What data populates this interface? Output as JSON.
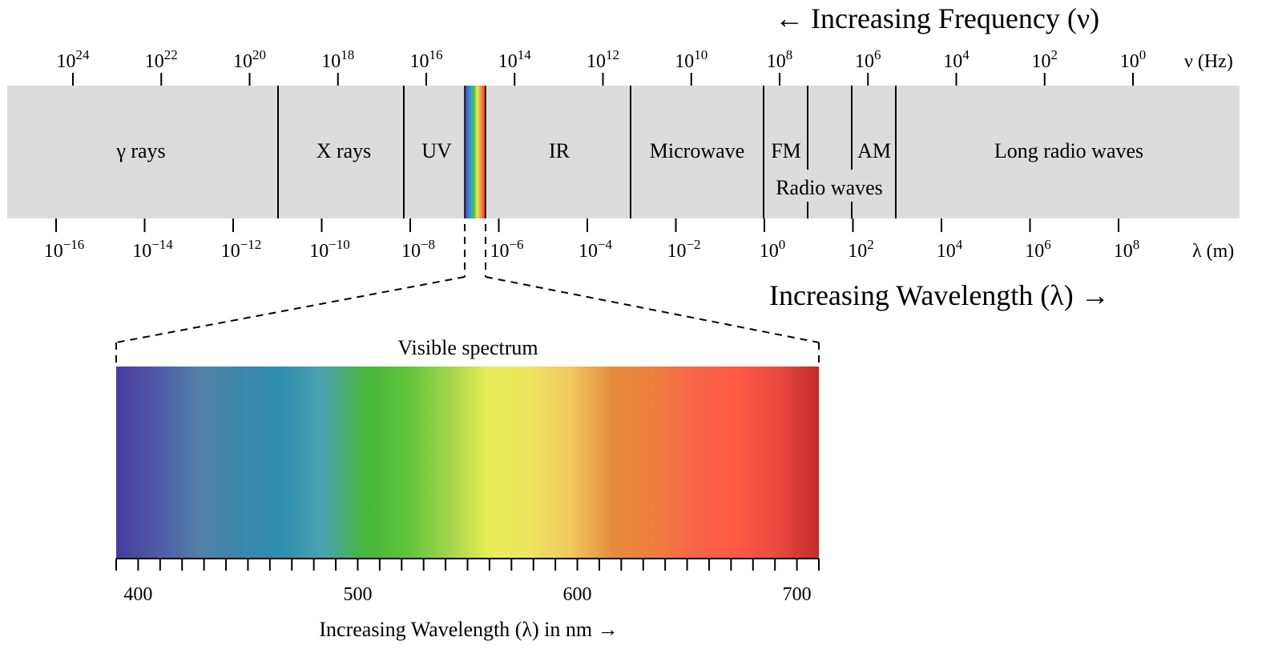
{
  "colors": {
    "band": "#dcdcdc",
    "line": "#000000",
    "background": "#ffffff"
  },
  "frequency_axis": {
    "title": "← Increasing Frequency (ν)",
    "unit_label": "ν (Hz)",
    "ticks": [
      {
        "base": "10",
        "exp": "24",
        "log_hz": 24
      },
      {
        "base": "10",
        "exp": "22",
        "log_hz": 22
      },
      {
        "base": "10",
        "exp": "20",
        "log_hz": 20
      },
      {
        "base": "10",
        "exp": "18",
        "log_hz": 18
      },
      {
        "base": "10",
        "exp": "16",
        "log_hz": 16
      },
      {
        "base": "10",
        "exp": "14",
        "log_hz": 14
      },
      {
        "base": "10",
        "exp": "12",
        "log_hz": 12
      },
      {
        "base": "10",
        "exp": "10",
        "log_hz": 10
      },
      {
        "base": "10",
        "exp": "8",
        "log_hz": 8
      },
      {
        "base": "10",
        "exp": "6",
        "log_hz": 6
      },
      {
        "base": "10",
        "exp": "4",
        "log_hz": 4
      },
      {
        "base": "10",
        "exp": "2",
        "log_hz": 2
      },
      {
        "base": "10",
        "exp": "0",
        "log_hz": 0
      }
    ]
  },
  "wavelength_axis": {
    "title": "Increasing Wavelength (λ) →",
    "unit_label": "λ (m)",
    "ticks": [
      {
        "base": "10",
        "exp": "−16",
        "log_m": -16
      },
      {
        "base": "10",
        "exp": "−14",
        "log_m": -14
      },
      {
        "base": "10",
        "exp": "−12",
        "log_m": -12
      },
      {
        "base": "10",
        "exp": "−10",
        "log_m": -10
      },
      {
        "base": "10",
        "exp": "−8",
        "log_m": -8
      },
      {
        "base": "10",
        "exp": "−6",
        "log_m": -6
      },
      {
        "base": "10",
        "exp": "−4",
        "log_m": -4
      },
      {
        "base": "10",
        "exp": "−2",
        "log_m": -2
      },
      {
        "base": "10",
        "exp": "0",
        "log_m": 0
      },
      {
        "base": "10",
        "exp": "2",
        "log_m": 2
      },
      {
        "base": "10",
        "exp": "4",
        "log_m": 4
      },
      {
        "base": "10",
        "exp": "6",
        "log_m": 6
      },
      {
        "base": "10",
        "exp": "8",
        "log_m": 8
      }
    ]
  },
  "regions": {
    "gamma": "γ rays",
    "xray": "X rays",
    "uv": "UV",
    "ir": "IR",
    "microwave": "Microwave",
    "fm": "FM",
    "am": "AM",
    "long_radio": "Long radio waves",
    "radio": "Radio waves"
  },
  "visible": {
    "title": "Visible spectrum",
    "axis_title": "Increasing Wavelength (λ) in nm →",
    "labels": [
      "400",
      "500",
      "600",
      "700"
    ],
    "range_nm": [
      390,
      710
    ],
    "tick_step_nm": 10,
    "gradient_colors": [
      "#4a3aa0",
      "#4d5aa6",
      "#527fa8",
      "#3b86ab",
      "#2e8fae",
      "#4aa3ae",
      "#48b53c",
      "#5cc43a",
      "#9fd44a",
      "#e6ee55",
      "#efe55f",
      "#f0c860",
      "#e68b3c",
      "#ef7f3e",
      "#f8654a",
      "#ff5a44",
      "#ea4a3e",
      "#c42b2b"
    ]
  }
}
